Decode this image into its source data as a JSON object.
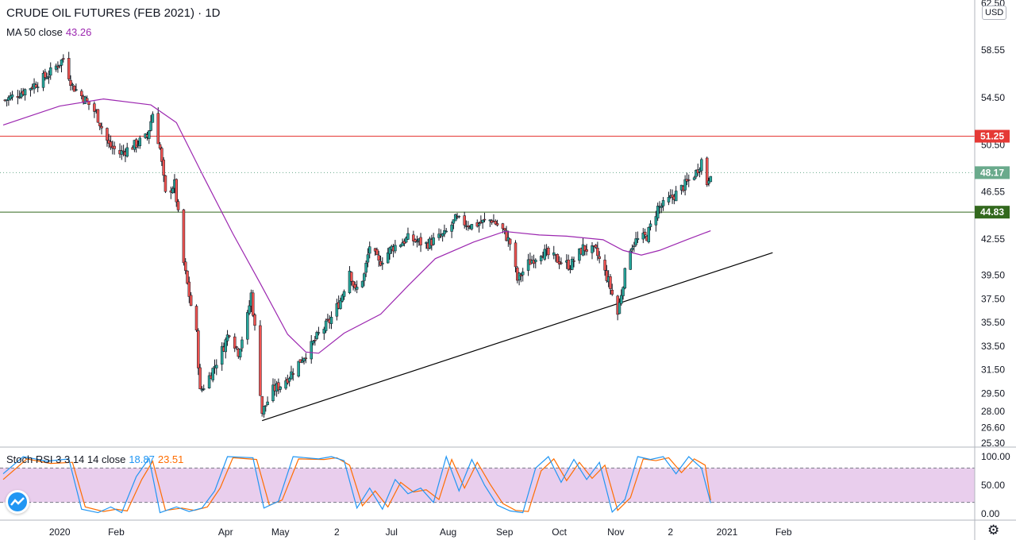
{
  "header": {
    "title": "CRUDE OIL FUTURES (FEB 2021) · 1D",
    "ma_label": "MA 50 close",
    "ma_value": "43.26",
    "currency": "USD"
  },
  "indicator": {
    "label": "Stoch RSI 3 3 14 14 close",
    "k_value": "18.87",
    "d_value": "23.51"
  },
  "icons": {
    "logo": "tradingview-cloud-icon",
    "settings": "gear-icon"
  },
  "colors": {
    "up": "#26a69a",
    "down": "#ef5350",
    "ma": "#9c27b0",
    "resistance": "#e53935",
    "support": "#33691e",
    "trendline": "#000000",
    "stoch_k": "#2196f3",
    "stoch_d": "#ff6d00",
    "band_fill": "#e1bee7",
    "last_price": "#6aaa8c"
  },
  "chart_data": [
    {
      "type": "candlestick",
      "title": "CRUDE OIL FUTURES (FEB 2021) · 1D",
      "y_axis": {
        "ticks": [
          "62.50",
          "58.55",
          "54.50",
          "50.50",
          "46.55",
          "42.55",
          "39.50",
          "37.50",
          "35.50",
          "33.50",
          "31.50",
          "29.50",
          "28.00",
          "26.60",
          "25.30"
        ],
        "ylim": [
          25.3,
          62.5
        ]
      },
      "x_axis": {
        "ticks": [
          "2020",
          "Feb",
          "Apr",
          "May",
          "2",
          "Jul",
          "Aug",
          "Sep",
          "Oct",
          "Nov",
          "2",
          "2021",
          "Feb"
        ],
        "range": [
          "2019-12-01",
          "2021-02-20"
        ]
      },
      "horizontal_levels": [
        {
          "price": 51.25,
          "label": "51.25",
          "style": "solid",
          "color": "#e53935"
        },
        {
          "price": 44.83,
          "label": "44.83",
          "style": "solid",
          "color": "#33691e"
        },
        {
          "price": 48.17,
          "label": "48.17",
          "style": "dotted",
          "color": "#6aaa8c"
        }
      ],
      "trendline": {
        "from": {
          "x": "2020-04-21",
          "y": 27.2
        },
        "to": {
          "x": "2021-01-26",
          "y": 41.4
        }
      },
      "close_path": [
        [
          "2019-12-02",
          54.3
        ],
        [
          "2019-12-10",
          54.9
        ],
        [
          "2019-12-18",
          55.6
        ],
        [
          "2019-12-26",
          56.5
        ],
        [
          "2020-01-03",
          57.8
        ],
        [
          "2020-01-08",
          55.5
        ],
        [
          "2020-01-14",
          54.5
        ],
        [
          "2020-01-21",
          53.2
        ],
        [
          "2020-01-24",
          52.0
        ],
        [
          "2020-01-28",
          50.5
        ],
        [
          "2020-02-03",
          49.8
        ],
        [
          "2020-02-10",
          50.4
        ],
        [
          "2020-02-18",
          51.2
        ],
        [
          "2020-02-21",
          53.2
        ],
        [
          "2020-02-25",
          50.2
        ],
        [
          "2020-02-28",
          46.3
        ],
        [
          "2020-03-04",
          47.2
        ],
        [
          "2020-03-06",
          44.6
        ],
        [
          "2020-03-09",
          40.5
        ],
        [
          "2020-03-12",
          37.8
        ],
        [
          "2020-03-16",
          34.5
        ],
        [
          "2020-03-18",
          29.6
        ],
        [
          "2020-03-24",
          31.2
        ],
        [
          "2020-03-31",
          33.5
        ],
        [
          "2020-04-03",
          34.8
        ],
        [
          "2020-04-08",
          33.0
        ],
        [
          "2020-04-13",
          36.0
        ],
        [
          "2020-04-15",
          37.9
        ],
        [
          "2020-04-17",
          35.0
        ],
        [
          "2020-04-21",
          27.9
        ],
        [
          "2020-04-27",
          29.8
        ],
        [
          "2020-05-01",
          30.2
        ],
        [
          "2020-05-06",
          31.0
        ],
        [
          "2020-05-12",
          32.3
        ],
        [
          "2020-05-18",
          33.5
        ],
        [
          "2020-05-22",
          34.5
        ],
        [
          "2020-05-28",
          35.6
        ],
        [
          "2020-06-03",
          37.4
        ],
        [
          "2020-06-08",
          40.0
        ],
        [
          "2020-06-11",
          38.1
        ],
        [
          "2020-06-16",
          39.5
        ],
        [
          "2020-06-19",
          42.0
        ],
        [
          "2020-06-24",
          40.5
        ],
        [
          "2020-07-01",
          41.8
        ],
        [
          "2020-07-10",
          42.6
        ],
        [
          "2020-07-20",
          42.1
        ],
        [
          "2020-07-30",
          42.9
        ],
        [
          "2020-08-05",
          44.2
        ],
        [
          "2020-08-14",
          43.7
        ],
        [
          "2020-08-25",
          44.2
        ],
        [
          "2020-08-31",
          43.3
        ],
        [
          "2020-09-04",
          42.2
        ],
        [
          "2020-09-08",
          39.1
        ],
        [
          "2020-09-14",
          40.5
        ],
        [
          "2020-09-21",
          41.5
        ],
        [
          "2020-09-30",
          40.8
        ],
        [
          "2020-10-07",
          40.3
        ],
        [
          "2020-10-14",
          41.8
        ],
        [
          "2020-10-21",
          41.5
        ],
        [
          "2020-10-28",
          39.0
        ],
        [
          "2020-11-02",
          36.2
        ],
        [
          "2020-11-05",
          38.9
        ],
        [
          "2020-11-09",
          41.9
        ],
        [
          "2020-11-12",
          42.4
        ],
        [
          "2020-11-18",
          42.8
        ],
        [
          "2020-11-24",
          45.2
        ],
        [
          "2020-11-27",
          45.4
        ],
        [
          "2020-12-04",
          46.4
        ],
        [
          "2020-12-10",
          47.3
        ],
        [
          "2020-12-15",
          48.2
        ],
        [
          "2020-12-18",
          49.2
        ],
        [
          "2020-12-21",
          47.3
        ],
        [
          "2020-12-23",
          48.3
        ]
      ],
      "series": [
        {
          "name": "MA 50 close",
          "points": [
            [
              "2019-12-01",
              52.2
            ],
            [
              "2020-01-01",
              53.8
            ],
            [
              "2020-01-25",
              54.4
            ],
            [
              "2020-02-20",
              53.9
            ],
            [
              "2020-03-05",
              52.4
            ],
            [
              "2020-03-20",
              47.8
            ],
            [
              "2020-04-05",
              43.0
            ],
            [
              "2020-04-20",
              38.8
            ],
            [
              "2020-05-05",
              34.5
            ],
            [
              "2020-05-15",
              33.0
            ],
            [
              "2020-05-22",
              32.9
            ],
            [
              "2020-06-05",
              34.6
            ],
            [
              "2020-06-25",
              36.2
            ],
            [
              "2020-07-10",
              38.6
            ],
            [
              "2020-07-25",
              40.9
            ],
            [
              "2020-08-15",
              42.3
            ],
            [
              "2020-09-01",
              43.2
            ],
            [
              "2020-09-20",
              42.9
            ],
            [
              "2020-10-05",
              42.8
            ],
            [
              "2020-10-25",
              42.5
            ],
            [
              "2020-11-05",
              41.6
            ],
            [
              "2020-11-15",
              41.2
            ],
            [
              "2020-11-25",
              41.6
            ],
            [
              "2020-12-10",
              42.5
            ],
            [
              "2020-12-23",
              43.26
            ]
          ]
        }
      ]
    },
    {
      "type": "line",
      "title": "Stoch RSI 3 3 14 14 close",
      "y_axis": {
        "ticks": [
          "100.00",
          "50.00",
          "0.00"
        ],
        "ylim": [
          0,
          100
        ]
      },
      "bands": [
        80,
        20
      ],
      "series": [
        {
          "name": "K",
          "points": [
            [
              "2019-12-01",
              70
            ],
            [
              "2019-12-12",
              100
            ],
            [
              "2019-12-25",
              92
            ],
            [
              "2020-01-06",
              96
            ],
            [
              "2020-01-13",
              8
            ],
            [
              "2020-01-22",
              2
            ],
            [
              "2020-01-29",
              12
            ],
            [
              "2020-02-04",
              2
            ],
            [
              "2020-02-12",
              65
            ],
            [
              "2020-02-19",
              97
            ],
            [
              "2020-02-25",
              2
            ],
            [
              "2020-03-05",
              12
            ],
            [
              "2020-03-12",
              4
            ],
            [
              "2020-03-19",
              10
            ],
            [
              "2020-03-26",
              40
            ],
            [
              "2020-04-02",
              100
            ],
            [
              "2020-04-16",
              98
            ],
            [
              "2020-04-22",
              10
            ],
            [
              "2020-04-30",
              22
            ],
            [
              "2020-05-08",
              100
            ],
            [
              "2020-05-22",
              96
            ],
            [
              "2020-05-29",
              100
            ],
            [
              "2020-06-05",
              93
            ],
            [
              "2020-06-12",
              10
            ],
            [
              "2020-06-19",
              45
            ],
            [
              "2020-06-26",
              8
            ],
            [
              "2020-07-03",
              60
            ],
            [
              "2020-07-10",
              35
            ],
            [
              "2020-07-17",
              45
            ],
            [
              "2020-07-24",
              20
            ],
            [
              "2020-07-31",
              100
            ],
            [
              "2020-08-07",
              40
            ],
            [
              "2020-08-14",
              95
            ],
            [
              "2020-08-21",
              50
            ],
            [
              "2020-08-28",
              15
            ],
            [
              "2020-09-04",
              5
            ],
            [
              "2020-09-11",
              2
            ],
            [
              "2020-09-18",
              80
            ],
            [
              "2020-09-25",
              100
            ],
            [
              "2020-10-02",
              55
            ],
            [
              "2020-10-09",
              95
            ],
            [
              "2020-10-16",
              60
            ],
            [
              "2020-10-23",
              90
            ],
            [
              "2020-10-30",
              3
            ],
            [
              "2020-11-06",
              25
            ],
            [
              "2020-11-13",
              100
            ],
            [
              "2020-11-20",
              95
            ],
            [
              "2020-11-27",
              100
            ],
            [
              "2020-12-04",
              70
            ],
            [
              "2020-12-11",
              100
            ],
            [
              "2020-12-18",
              80
            ],
            [
              "2020-12-23",
              18.87
            ]
          ]
        },
        {
          "name": "D",
          "points": [
            [
              "2019-12-01",
              60
            ],
            [
              "2019-12-14",
              96
            ],
            [
              "2019-12-27",
              88
            ],
            [
              "2020-01-08",
              90
            ],
            [
              "2020-01-15",
              12
            ],
            [
              "2020-01-25",
              4
            ],
            [
              "2020-02-01",
              8
            ],
            [
              "2020-02-07",
              5
            ],
            [
              "2020-02-15",
              60
            ],
            [
              "2020-02-21",
              92
            ],
            [
              "2020-02-28",
              6
            ],
            [
              "2020-03-08",
              10
            ],
            [
              "2020-03-15",
              6
            ],
            [
              "2020-03-22",
              12
            ],
            [
              "2020-03-29",
              45
            ],
            [
              "2020-04-05",
              98
            ],
            [
              "2020-04-18",
              95
            ],
            [
              "2020-04-25",
              15
            ],
            [
              "2020-05-02",
              24
            ],
            [
              "2020-05-11",
              96
            ],
            [
              "2020-05-25",
              95
            ],
            [
              "2020-06-01",
              98
            ],
            [
              "2020-06-08",
              85
            ],
            [
              "2020-06-15",
              14
            ],
            [
              "2020-06-22",
              40
            ],
            [
              "2020-06-29",
              12
            ],
            [
              "2020-07-06",
              55
            ],
            [
              "2020-07-13",
              38
            ],
            [
              "2020-07-20",
              42
            ],
            [
              "2020-07-27",
              25
            ],
            [
              "2020-08-03",
              95
            ],
            [
              "2020-08-10",
              45
            ],
            [
              "2020-08-17",
              90
            ],
            [
              "2020-08-24",
              52
            ],
            [
              "2020-08-31",
              18
            ],
            [
              "2020-09-07",
              6
            ],
            [
              "2020-09-14",
              4
            ],
            [
              "2020-09-21",
              75
            ],
            [
              "2020-09-28",
              96
            ],
            [
              "2020-10-05",
              58
            ],
            [
              "2020-10-12",
              90
            ],
            [
              "2020-10-19",
              62
            ],
            [
              "2020-10-26",
              85
            ],
            [
              "2020-11-02",
              6
            ],
            [
              "2020-11-09",
              28
            ],
            [
              "2020-11-16",
              96
            ],
            [
              "2020-11-23",
              93
            ],
            [
              "2020-11-30",
              98
            ],
            [
              "2020-12-07",
              72
            ],
            [
              "2020-12-14",
              96
            ],
            [
              "2020-12-20",
              85
            ],
            [
              "2020-12-23",
              23.51
            ]
          ]
        }
      ]
    }
  ]
}
